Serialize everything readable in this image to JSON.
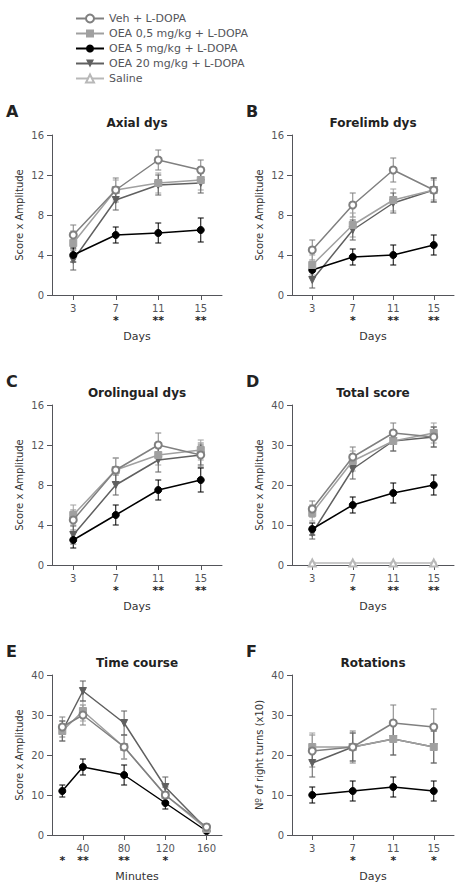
{
  "chart_data": [
    {
      "type": "line",
      "panel_label": "A",
      "title": "Axial dys",
      "xlabel": "Days",
      "ylabel": "Score x Amplitude",
      "xlim": [
        1,
        17
      ],
      "xticks": [
        3,
        7,
        11,
        15
      ],
      "ylim": [
        0,
        16
      ],
      "yticks": [
        0,
        4,
        8,
        12,
        16
      ],
      "grid": false,
      "legend": "top",
      "x": [
        3,
        7,
        11,
        15
      ],
      "series": [
        {
          "name": "Veh + L-DOPA",
          "color": "#808080",
          "marker": "open_circle",
          "values": [
            6.0,
            10.5,
            13.5,
            12.5
          ],
          "errors": [
            1.0,
            1.2,
            1.0,
            1.0
          ]
        },
        {
          "name": "OEA 0,5 mg/kg + L-DOPA",
          "color": "#a0a0a0",
          "marker": "square",
          "values": [
            5.2,
            10.5,
            11.2,
            11.5
          ],
          "errors": [
            1.2,
            1.0,
            1.0,
            1.0
          ]
        },
        {
          "name": "OEA 5 mg/kg + L-DOPA",
          "color": "#000000",
          "marker": "circle",
          "values": [
            4.0,
            6.0,
            6.2,
            6.5
          ],
          "errors": [
            0.7,
            0.8,
            1.0,
            1.2
          ]
        },
        {
          "name": "OEA 20 mg/kg + L-DOPA",
          "color": "#606060",
          "marker": "triangle_down",
          "values": [
            3.5,
            9.5,
            11.0,
            11.2
          ],
          "errors": [
            1.0,
            1.0,
            1.0,
            1.0
          ]
        }
      ],
      "annotations": [
        {
          "x": 7,
          "text": "*"
        },
        {
          "x": 11,
          "text": "**"
        },
        {
          "x": 15,
          "text": "**"
        }
      ]
    },
    {
      "type": "line",
      "panel_label": "B",
      "title": "Forelimb dys",
      "xlabel": "Days",
      "ylabel": "Score x Amplitude",
      "xlim": [
        1,
        17
      ],
      "xticks": [
        3,
        7,
        11,
        15
      ],
      "ylim": [
        0,
        16
      ],
      "yticks": [
        0,
        4,
        8,
        12,
        16
      ],
      "grid": false,
      "legend": "top",
      "x": [
        3,
        7,
        11,
        15
      ],
      "series": [
        {
          "name": "Veh + L-DOPA",
          "color": "#808080",
          "marker": "open_circle",
          "values": [
            4.5,
            9.0,
            12.5,
            10.5
          ],
          "errors": [
            1.0,
            1.2,
            1.2,
            1.2
          ]
        },
        {
          "name": "OEA 0,5 mg/kg + L-DOPA",
          "color": "#a0a0a0",
          "marker": "square",
          "values": [
            3.0,
            7.0,
            9.5,
            10.5
          ],
          "errors": [
            1.0,
            1.2,
            1.1,
            1.0
          ]
        },
        {
          "name": "OEA 5 mg/kg + L-DOPA",
          "color": "#000000",
          "marker": "circle",
          "values": [
            2.5,
            3.8,
            4.0,
            5.0
          ],
          "errors": [
            0.7,
            0.8,
            1.0,
            1.0
          ]
        },
        {
          "name": "OEA 20 mg/kg + L-DOPA",
          "color": "#606060",
          "marker": "triangle_down",
          "values": [
            1.5,
            6.5,
            9.2,
            10.5
          ],
          "errors": [
            0.8,
            1.0,
            1.0,
            1.2
          ]
        }
      ],
      "annotations": [
        {
          "x": 7,
          "text": "*"
        },
        {
          "x": 11,
          "text": "**"
        },
        {
          "x": 15,
          "text": "**"
        }
      ]
    },
    {
      "type": "line",
      "panel_label": "C",
      "title": "Orolingual dys",
      "xlabel": "Days",
      "ylabel": "Score x Amplitude",
      "xlim": [
        1,
        17
      ],
      "xticks": [
        3,
        7,
        11,
        15
      ],
      "ylim": [
        0,
        16
      ],
      "yticks": [
        0,
        4,
        8,
        12,
        16
      ],
      "grid": false,
      "legend": "top",
      "x": [
        3,
        7,
        11,
        15
      ],
      "series": [
        {
          "name": "Veh + L-DOPA",
          "color": "#808080",
          "marker": "open_circle",
          "values": [
            4.5,
            9.5,
            12.0,
            11.0
          ],
          "errors": [
            1.0,
            1.2,
            1.2,
            1.2
          ]
        },
        {
          "name": "OEA 0,5 mg/kg + L-DOPA",
          "color": "#a0a0a0",
          "marker": "square",
          "values": [
            5.0,
            9.5,
            11.0,
            11.5
          ],
          "errors": [
            1.0,
            1.2,
            1.0,
            1.0
          ]
        },
        {
          "name": "OEA 5 mg/kg + L-DOPA",
          "color": "#000000",
          "marker": "circle",
          "values": [
            2.5,
            5.0,
            7.5,
            8.5
          ],
          "errors": [
            0.8,
            1.0,
            1.0,
            1.2
          ]
        },
        {
          "name": "OEA 20 mg/kg + L-DOPA",
          "color": "#606060",
          "marker": "triangle_down",
          "values": [
            3.0,
            8.0,
            10.5,
            11.0
          ],
          "errors": [
            0.9,
            1.0,
            1.2,
            1.0
          ]
        }
      ],
      "annotations": [
        {
          "x": 7,
          "text": "*"
        },
        {
          "x": 11,
          "text": "**"
        },
        {
          "x": 15,
          "text": "**"
        }
      ]
    },
    {
      "type": "line",
      "panel_label": "D",
      "title": "Total score",
      "xlabel": "Days",
      "ylabel": "Score x Amplitude",
      "xlim": [
        1,
        17
      ],
      "xticks": [
        3,
        7,
        11,
        15
      ],
      "ylim": [
        0,
        40
      ],
      "yticks": [
        0,
        10,
        20,
        30,
        40
      ],
      "grid": false,
      "legend": "top",
      "x": [
        3,
        7,
        11,
        15
      ],
      "series": [
        {
          "name": "Veh + L-DOPA",
          "color": "#808080",
          "marker": "open_circle",
          "values": [
            14.0,
            27.0,
            33.0,
            32.0
          ],
          "errors": [
            2.0,
            2.5,
            2.5,
            2.5
          ]
        },
        {
          "name": "OEA 0,5 mg/kg + L-DOPA",
          "color": "#a0a0a0",
          "marker": "square",
          "values": [
            13.0,
            26.0,
            31.0,
            33.0
          ],
          "errors": [
            2.0,
            2.5,
            2.5,
            2.5
          ]
        },
        {
          "name": "OEA 5 mg/kg + L-DOPA",
          "color": "#000000",
          "marker": "circle",
          "values": [
            9.0,
            15.0,
            18.0,
            20.0
          ],
          "errors": [
            1.5,
            2.0,
            2.5,
            2.5
          ]
        },
        {
          "name": "OEA 20 mg/kg + L-DOPA",
          "color": "#606060",
          "marker": "triangle_down",
          "values": [
            8.0,
            24.0,
            31.0,
            32.0
          ],
          "errors": [
            1.5,
            2.5,
            2.5,
            2.5
          ]
        },
        {
          "name": "Saline",
          "color": "#b8b8b8",
          "marker": "open_triangle",
          "values": [
            0.5,
            0.5,
            0.5,
            0.5
          ],
          "errors": [
            0.2,
            0.2,
            0.2,
            0.2
          ]
        }
      ],
      "annotations": [
        {
          "x": 7,
          "text": "*"
        },
        {
          "x": 11,
          "text": "**"
        },
        {
          "x": 15,
          "text": "**"
        }
      ]
    },
    {
      "type": "line",
      "panel_label": "E",
      "title": "Time course",
      "xlabel": "Minutes",
      "ylabel": "Score x Amplitude",
      "xlim": [
        10,
        175
      ],
      "xticks": [
        40,
        80,
        120,
        160
      ],
      "ylim": [
        0,
        40
      ],
      "yticks": [
        0,
        10,
        20,
        30,
        40
      ],
      "grid": false,
      "legend": "top",
      "x": [
        20,
        40,
        80,
        120,
        160
      ],
      "series": [
        {
          "name": "Veh + L-DOPA",
          "color": "#808080",
          "marker": "open_circle",
          "values": [
            27.0,
            30.0,
            22.0,
            10.0,
            2.0
          ],
          "errors": [
            2.5,
            2.5,
            3.0,
            2.0,
            0.8
          ]
        },
        {
          "name": "OEA 0,5 mg/kg + L-DOPA",
          "color": "#a0a0a0",
          "marker": "square",
          "values": [
            26.0,
            31.0,
            22.0,
            10.0,
            1.5
          ],
          "errors": [
            2.5,
            2.5,
            3.0,
            2.0,
            0.8
          ]
        },
        {
          "name": "OEA 5 mg/kg + L-DOPA",
          "color": "#000000",
          "marker": "circle",
          "values": [
            11.0,
            17.0,
            15.0,
            8.0,
            1.0
          ],
          "errors": [
            1.5,
            2.0,
            2.5,
            1.5,
            0.5
          ]
        },
        {
          "name": "OEA 20 mg/kg + L-DOPA",
          "color": "#606060",
          "marker": "triangle_down",
          "values": [
            26.0,
            36.0,
            28.0,
            12.0,
            1.5
          ],
          "errors": [
            2.5,
            2.5,
            3.0,
            2.5,
            0.8
          ]
        }
      ],
      "annotations": [
        {
          "x": 20,
          "text": "*"
        },
        {
          "x": 40,
          "text": "**"
        },
        {
          "x": 80,
          "text": "**"
        },
        {
          "x": 120,
          "text": "*"
        }
      ]
    },
    {
      "type": "line",
      "panel_label": "F",
      "title": "Rotations",
      "xlabel": "Days",
      "ylabel": "Nº of right turns (x10)",
      "xlim": [
        1,
        17
      ],
      "xticks": [
        3,
        7,
        11,
        15
      ],
      "ylim": [
        0,
        40
      ],
      "yticks": [
        0,
        10,
        20,
        30,
        40
      ],
      "grid": false,
      "legend": "top",
      "x": [
        3,
        7,
        11,
        15
      ],
      "series": [
        {
          "name": "Veh + L-DOPA",
          "color": "#808080",
          "marker": "open_circle",
          "values": [
            21.0,
            22.0,
            28.0,
            27.0
          ],
          "errors": [
            4.0,
            4.0,
            4.5,
            4.5
          ]
        },
        {
          "name": "OEA 0,5 mg/kg + L-DOPA",
          "color": "#a0a0a0",
          "marker": "square",
          "values": [
            22.0,
            22.0,
            24.0,
            22.0
          ],
          "errors": [
            3.5,
            3.5,
            4.0,
            4.0
          ]
        },
        {
          "name": "OEA 5 mg/kg + L-DOPA",
          "color": "#000000",
          "marker": "circle",
          "values": [
            10.0,
            11.0,
            12.0,
            11.0
          ],
          "errors": [
            2.0,
            2.5,
            2.5,
            2.5
          ]
        },
        {
          "name": "OEA 20 mg/kg + L-DOPA",
          "color": "#606060",
          "marker": "triangle_down",
          "values": [
            18.0,
            22.0,
            24.0,
            22.0
          ],
          "errors": [
            3.5,
            3.5,
            4.0,
            4.0
          ]
        }
      ],
      "annotations": [
        {
          "x": 7,
          "text": "*"
        },
        {
          "x": 11,
          "text": "*"
        },
        {
          "x": 15,
          "text": "*"
        }
      ]
    }
  ]
}
